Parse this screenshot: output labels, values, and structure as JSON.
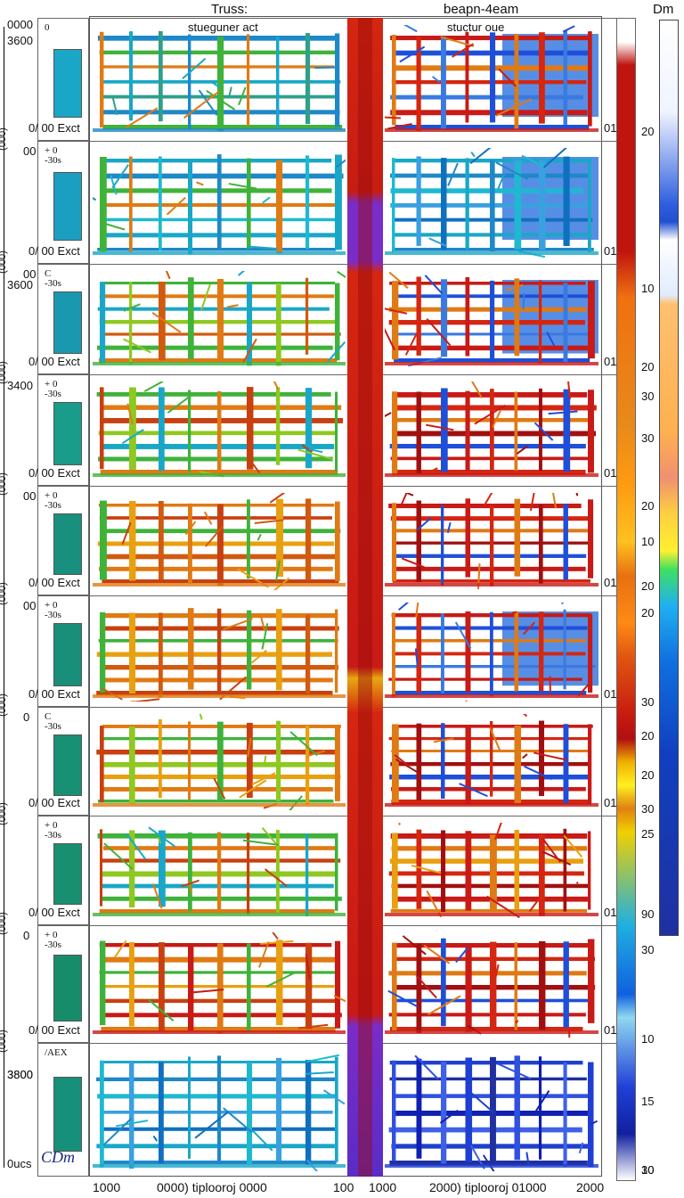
{
  "header": {
    "left_title": "Truss:",
    "left_subtitle": "stueguner act",
    "right_title": "beapn-4eam",
    "right_subtitle": "stuctur oue",
    "legend_title": "Dm"
  },
  "left_axis": {
    "top_labels": [
      "0000",
      "3600"
    ],
    "rotated_labels": [
      "(000)",
      "(000)",
      "(000)",
      "(000)",
      "(000)",
      "(000)",
      "(000)",
      "(000)"
    ],
    "mid_labels": [
      "3600",
      "3400",
      "3800"
    ],
    "bottom_label": "0ucs"
  },
  "rows": [
    {
      "top_num": "",
      "ext": "00 Exct",
      "right": "01",
      "left_tag": "0",
      "thumb_color": "#1aa7c7",
      "left_palette": "blue-green",
      "right_palette": "red-blue"
    },
    {
      "top_num": "00",
      "ext": "00 Exct",
      "right": "01",
      "left_tag": "0",
      "thumb_color": "#1a9fc0",
      "left_palette": "cyan",
      "right_palette": "blue"
    },
    {
      "top_num": "00",
      "ext": "00 Exct",
      "right": "01",
      "left_tag": "0",
      "thumb_color": "#1a98b0",
      "left_palette": "green",
      "right_palette": "red-blue"
    },
    {
      "top_num": "",
      "ext": "00 Exct",
      "right": "01",
      "left_tag": "0",
      "thumb_color": "#199c8a",
      "left_palette": "green-orange",
      "right_palette": "red"
    },
    {
      "top_num": "00",
      "ext": "00 Exct",
      "right": "01",
      "left_tag": "0",
      "thumb_color": "#198f7e",
      "left_palette": "orange",
      "right_palette": "red"
    },
    {
      "top_num": "00",
      "ext": "00 Exct",
      "right": "01",
      "left_tag": "0",
      "thumb_color": "#198f7a",
      "left_palette": "orange",
      "right_palette": "red-blue"
    },
    {
      "top_num": "0",
      "ext": "00 Exct",
      "right": "01",
      "left_tag": "0",
      "thumb_color": "#189074",
      "left_palette": "orange-green",
      "right_palette": "red"
    },
    {
      "top_num": "",
      "ext": "00 Exct",
      "right": "01",
      "left_tag": "0",
      "thumb_color": "#189070",
      "left_palette": "green-orange",
      "right_palette": "orange-red"
    },
    {
      "top_num": "0",
      "ext": "00 Exct",
      "right": "01",
      "left_tag": "0",
      "thumb_color": "#178c6a",
      "left_palette": "red-orange",
      "right_palette": "red"
    },
    {
      "top_num": "3800",
      "ext": "",
      "right": "",
      "left_tag": "",
      "thumb_color": "#16907a",
      "left_palette": "blue",
      "right_palette": "navy"
    }
  ],
  "row_tags": [
    "0",
    "+ 0\n-30s",
    "C\n-30s",
    "+ 0\n-30s",
    "+ 0\n-30s",
    "+ 0\n-30s",
    "C\n-30s",
    "+ 0\n-30s",
    "+ 0\n-30s",
    "/AEX"
  ],
  "colorbar_labels": [
    "20",
    "10",
    "20",
    "30",
    "30",
    "20",
    "20",
    "30",
    "20",
    "20",
    "30",
    "25",
    "90",
    "30",
    "10",
    "15",
    "30",
    "20",
    "10",
    "10"
  ],
  "bottom_axis": {
    "a": "1000",
    "b": "0000) tiplooroj 0000",
    "c": "100",
    "d": "1000",
    "e": "2000) tiplooroj 01000",
    "f": "2000"
  },
  "corner_logo": "CDm",
  "colors": {
    "left_blue": "#1e88c8",
    "left_green": "#3fb23a",
    "left_orange": "#e07a14",
    "right_red": "#c81a16",
    "right_blue": "#1f4fd8",
    "column_red": "#d42610",
    "column_purple": "#7a2cc7"
  }
}
